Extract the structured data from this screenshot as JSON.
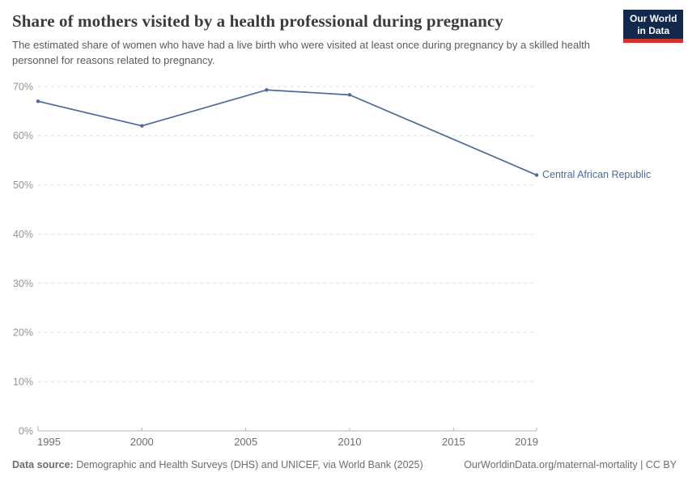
{
  "header": {
    "title": "Share of mothers visited by a health professional during pregnancy",
    "subtitle": "The estimated share of women who have had a live birth who were visited at least once during pregnancy by a skilled health personnel for reasons related to pregnancy.",
    "logo": {
      "line1": "Our World",
      "line2": "in Data"
    }
  },
  "chart_data": {
    "type": "line",
    "title": "Share of mothers visited by a health professional during pregnancy",
    "x": [
      1995,
      2000,
      2006,
      2010,
      2019
    ],
    "series": [
      {
        "name": "Central African Republic",
        "color": "#4C6A9C",
        "values": [
          67.0,
          62.0,
          69.3,
          68.3,
          52.0
        ]
      }
    ],
    "xlim": [
      1995,
      2019
    ],
    "ylim": [
      0,
      70
    ],
    "x_ticks": [
      1995,
      2000,
      2005,
      2010,
      2015,
      2019
    ],
    "y_ticks": [
      0,
      10,
      20,
      30,
      40,
      50,
      60,
      70
    ],
    "y_tick_suffix": "%",
    "xlabel": "",
    "ylabel": "",
    "grid": "horizontal-dashed",
    "legend_position": "line-end-label"
  },
  "footer": {
    "source_label": "Data source:",
    "source_text": " Demographic and Health Surveys (DHS) and UNICEF, via World Bank (2025)",
    "attribution": "OurWorldinData.org/maternal-mortality | CC BY"
  },
  "colors": {
    "line": "#4C6A9C",
    "entity_label": "#4C6A9C",
    "grid": "#dedede",
    "axis": "#b3b3b3",
    "y_tick_label": "#949494",
    "x_tick_label": "#6e6e6e",
    "logo_bg": "#12294d",
    "logo_accent": "#d0342c"
  }
}
